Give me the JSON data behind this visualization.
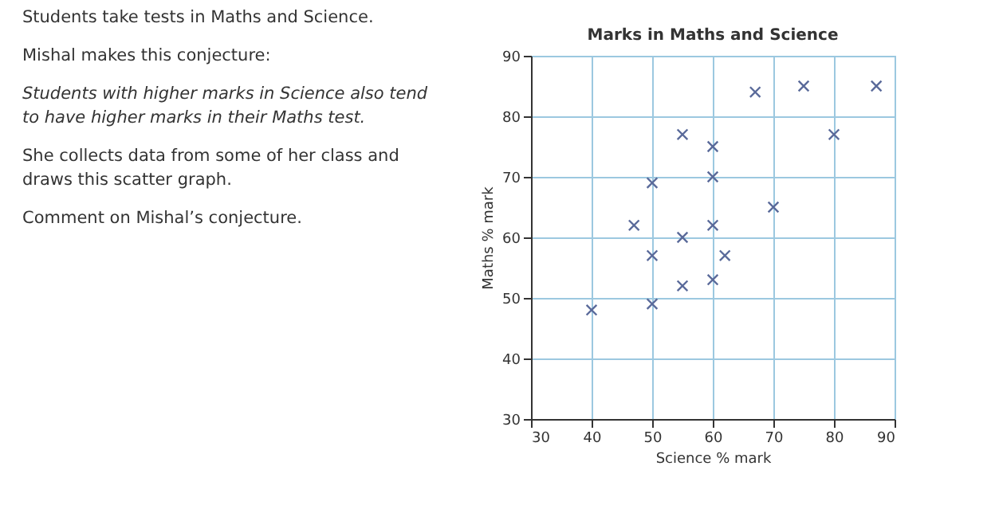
{
  "chart_data": {
    "type": "scatter",
    "title": "Marks in Maths and Science",
    "xlabel": "Science % mark",
    "ylabel": "Maths % mark",
    "x": [
      40,
      47,
      50,
      50,
      50,
      55,
      55,
      55,
      60,
      60,
      60,
      60,
      62,
      67,
      70,
      75,
      80,
      87
    ],
    "series": [
      {
        "color": "#5a6a9a",
        "values": [
          48,
          62,
          69,
          57,
          49,
          77,
          60,
          52,
          75,
          70,
          62,
          53,
          57,
          84,
          65,
          85,
          77,
          85
        ]
      }
    ],
    "xlim": [
      30,
      90
    ],
    "ylim": [
      30,
      90
    ],
    "xticks": [
      30,
      40,
      50,
      60,
      70,
      80,
      90
    ],
    "yticks": [
      30,
      40,
      50,
      60,
      70,
      80,
      90
    ],
    "grid": true,
    "marker": "cross",
    "annotations": [
      "Students take tests in Maths and Science.",
      "Mishal makes this conjecture:",
      "Students with higher marks in Science also tend to have higher marks in their Maths test.",
      "She collects data from some of her class and draws this scatter graph.",
      "Comment on Mishal’s conjecture."
    ]
  }
}
